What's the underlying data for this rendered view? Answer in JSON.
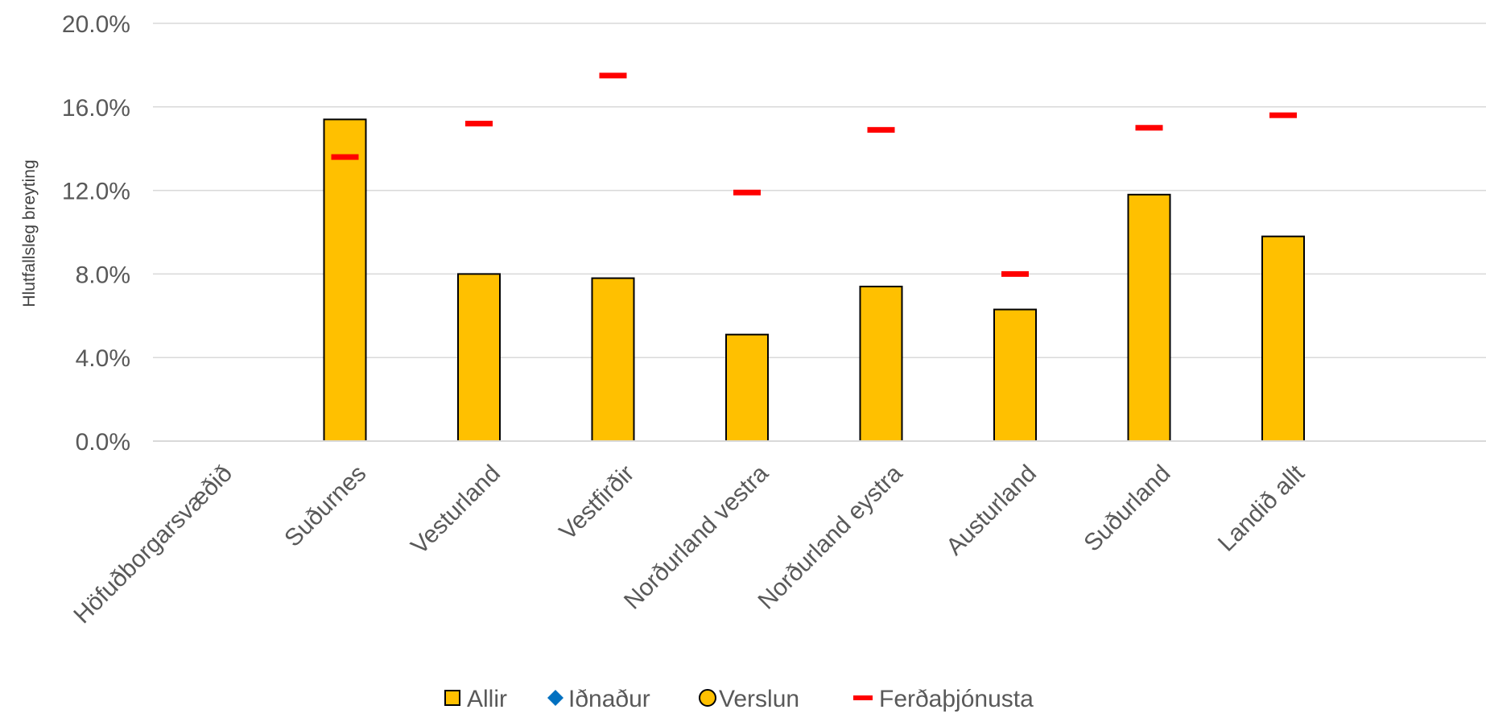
{
  "chart_data": {
    "type": "bar",
    "title": "",
    "xlabel": "",
    "ylabel": "Hlutfallsleg breyting",
    "ylim": [
      0,
      20
    ],
    "yticks": [
      0,
      4,
      8,
      12,
      16,
      20
    ],
    "ytick_labels": [
      "0.0%",
      "4.0%",
      "8.0%",
      "12.0%",
      "16.0%",
      "20.0%"
    ],
    "grid": true,
    "legend_position": "bottom",
    "categories": [
      "Höfuðborgarsvæðið",
      "Suðurnes",
      "Vesturland",
      "Vestfirðir",
      "Norðurland vestra",
      "Norðurland eystra",
      "Austurland",
      "Suðurland",
      "Landið allt"
    ],
    "series": [
      {
        "name": "Allir",
        "marker": "bar",
        "color": "#FFC000",
        "values": [
          null,
          15.4,
          8.0,
          7.8,
          5.1,
          7.4,
          6.3,
          11.8,
          9.8
        ]
      },
      {
        "name": "Iðnaður",
        "marker": "diamond",
        "color": "#0070C0",
        "values": [
          null,
          null,
          null,
          null,
          null,
          null,
          null,
          null,
          null
        ]
      },
      {
        "name": "Verslun",
        "marker": "circle",
        "color": "#FFC000",
        "values": [
          null,
          null,
          null,
          null,
          null,
          null,
          null,
          null,
          null
        ]
      },
      {
        "name": "Ferðaþjónusta",
        "marker": "dash",
        "color": "#FF0000",
        "values": [
          null,
          13.6,
          15.2,
          17.5,
          11.9,
          14.9,
          8.0,
          15.0,
          15.6
        ]
      }
    ]
  }
}
